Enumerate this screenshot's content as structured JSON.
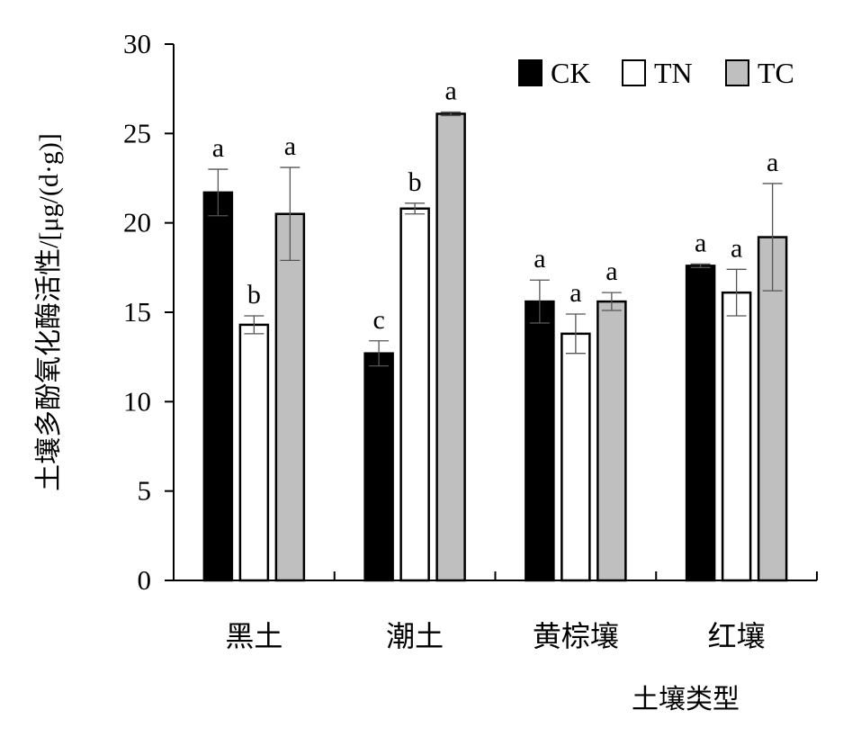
{
  "chart_data": {
    "type": "bar",
    "title": "",
    "xlabel": "土壤类型",
    "ylabel": "土壤多酚氧化酶活性/[μg/(d·g)]",
    "ylim": [
      0,
      30
    ],
    "yticks": [
      "0",
      "5",
      "10",
      "15",
      "20",
      "25",
      "30"
    ],
    "categories": [
      "黑土",
      "潮土",
      "黄棕壤",
      "红壤"
    ],
    "legend_position": "top-right",
    "grid": false,
    "series": [
      {
        "name": "CK",
        "color": "#000000",
        "values": [
          21.7,
          12.7,
          15.6,
          17.6
        ],
        "errors": [
          1.3,
          0.7,
          1.2,
          0.1
        ],
        "letters": [
          "a",
          "c",
          "a",
          "a"
        ]
      },
      {
        "name": "TN",
        "color": "#ffffff",
        "values": [
          14.3,
          20.8,
          13.8,
          16.1
        ],
        "errors": [
          0.5,
          0.3,
          1.1,
          1.3
        ],
        "letters": [
          "b",
          "b",
          "a",
          "a"
        ]
      },
      {
        "name": "TC",
        "color": "#bfbfbf",
        "values": [
          20.5,
          26.1,
          15.6,
          19.2
        ],
        "errors": [
          2.6,
          0.1,
          0.5,
          3.0
        ],
        "letters": [
          "a",
          "a",
          "a",
          "a"
        ]
      }
    ]
  }
}
